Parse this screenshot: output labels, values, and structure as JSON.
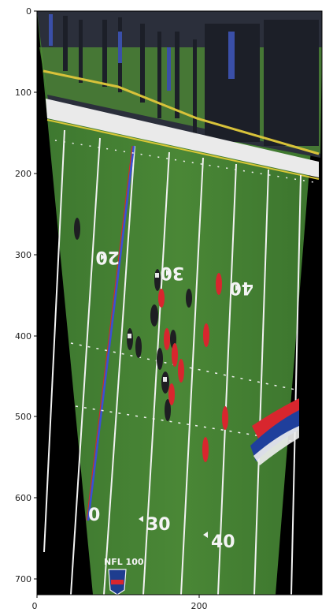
{
  "axes": {
    "x_ticks": [
      "0",
      "200"
    ],
    "y_ticks": [
      "0",
      "100",
      "200",
      "300",
      "400",
      "500",
      "600",
      "700"
    ]
  },
  "image": {
    "subject": "football field aerial view",
    "field_numbers": [
      "20",
      "30",
      "40",
      "0",
      "30",
      "40"
    ],
    "logo_text": "NFL 100"
  },
  "colors": {
    "field_green": "#3f7a30",
    "field_green_light": "#4b8a36",
    "line_white": "#f2f2f2",
    "blue_line": "#3b4fd6",
    "red_jersey": "#d8262e",
    "dark_jersey": "#1e1e22",
    "crowd": "#2a2e3a",
    "border_black": "#000000"
  }
}
